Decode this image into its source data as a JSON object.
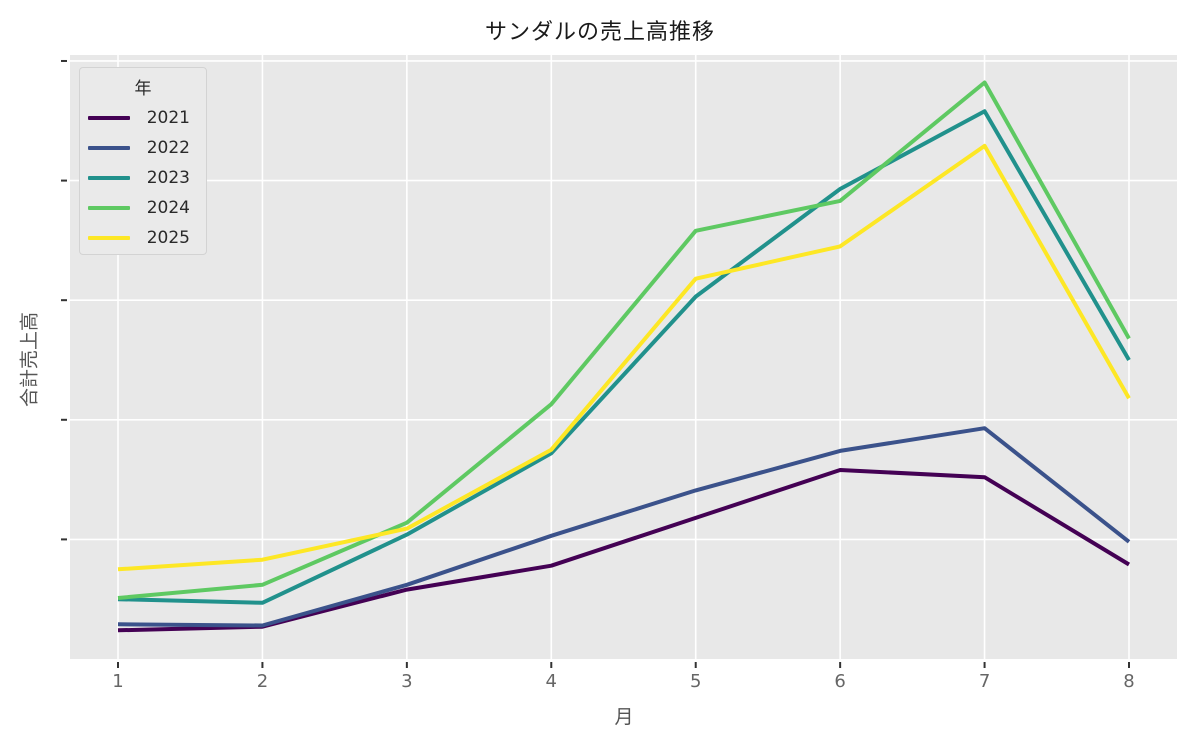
{
  "title": "サンダルの売上高推移",
  "chart_data": {
    "type": "line",
    "x": [
      1,
      2,
      3,
      4,
      5,
      6,
      7,
      8
    ],
    "x_tick_labels": [
      "1",
      "2",
      "3",
      "4",
      "5",
      "6",
      "7",
      "8"
    ],
    "xlabel": "月",
    "ylabel": "合計売上高",
    "legend_title": "年",
    "legend_position": "upper-left",
    "grid": true,
    "y_tick_labels_visible": false,
    "ylim": [
      0,
      505
    ],
    "y_gridline_values": [
      100,
      200,
      300,
      400,
      500
    ],
    "plot_background": "#e8e8e8",
    "gridline_color": "#ffffff",
    "tick_color": "#333333",
    "tick_label_color": "#666666",
    "series": [
      {
        "name": "2021",
        "color": "#440154",
        "values": [
          24,
          27,
          58,
          78,
          118,
          158,
          152,
          79
        ]
      },
      {
        "name": "2022",
        "color": "#3b528b",
        "values": [
          29,
          28,
          62,
          103,
          141,
          174,
          193,
          98
        ]
      },
      {
        "name": "2023",
        "color": "#21918c",
        "values": [
          50,
          47,
          104,
          172,
          303,
          393,
          458,
          250
        ]
      },
      {
        "name": "2024",
        "color": "#5ec962",
        "values": [
          51,
          62,
          114,
          213,
          358,
          383,
          482,
          268
        ]
      },
      {
        "name": "2025",
        "color": "#fde725",
        "values": [
          75,
          83,
          109,
          175,
          318,
          345,
          429,
          218
        ]
      }
    ]
  }
}
